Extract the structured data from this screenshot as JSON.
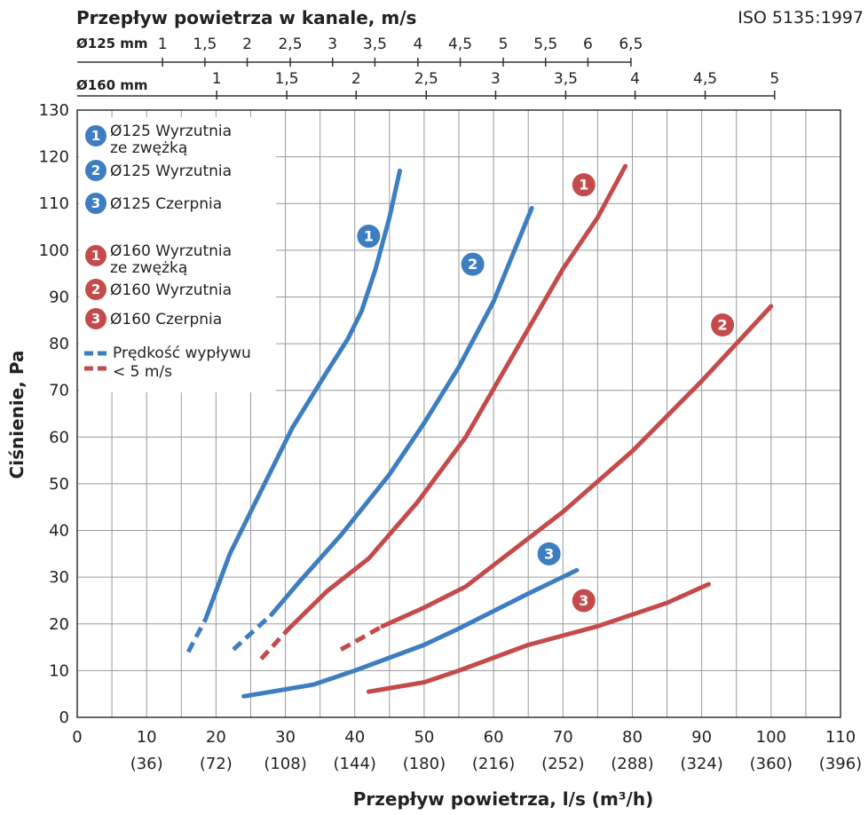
{
  "chart_data": {
    "type": "line",
    "title": "Przepływ powietrza w kanale, m/s",
    "standard": "ISO 5135:1997",
    "xlabel": "Przepływ powietrza, l/s (m³/h)",
    "ylabel": "Ciśnienie, Pa",
    "xlim": [
      0,
      110
    ],
    "ylim": [
      0,
      130
    ],
    "x_ticks": [
      {
        "v": 0,
        "label": "0",
        "sub": ""
      },
      {
        "v": 10,
        "label": "10",
        "sub": "(36)"
      },
      {
        "v": 20,
        "label": "20",
        "sub": "(72)"
      },
      {
        "v": 30,
        "label": "30",
        "sub": "(108)"
      },
      {
        "v": 40,
        "label": "40",
        "sub": "(144)"
      },
      {
        "v": 50,
        "label": "50",
        "sub": "(180)"
      },
      {
        "v": 60,
        "label": "60",
        "sub": "(216)"
      },
      {
        "v": 70,
        "label": "70",
        "sub": "(252)"
      },
      {
        "v": 80,
        "label": "80",
        "sub": "(288)"
      },
      {
        "v": 90,
        "label": "90",
        "sub": "(324)"
      },
      {
        "v": 100,
        "label": "100",
        "sub": "(360)"
      },
      {
        "v": 110,
        "label": "110",
        "sub": "(396)"
      }
    ],
    "y_ticks": [
      0,
      10,
      20,
      30,
      40,
      50,
      60,
      70,
      80,
      90,
      100,
      110,
      120,
      130
    ],
    "top_axis_125": {
      "label": "Ø125 mm",
      "ticks": [
        {
          "flow": 12.3,
          "label": "1"
        },
        {
          "flow": 18.4,
          "label": "1,5"
        },
        {
          "flow": 24.5,
          "label": "2"
        },
        {
          "flow": 30.7,
          "label": "2,5"
        },
        {
          "flow": 36.8,
          "label": "3"
        },
        {
          "flow": 42.9,
          "label": "3,5"
        },
        {
          "flow": 49.1,
          "label": "4"
        },
        {
          "flow": 55.2,
          "label": "4,5"
        },
        {
          "flow": 61.4,
          "label": "5"
        },
        {
          "flow": 67.5,
          "label": "5,5"
        },
        {
          "flow": 73.6,
          "label": "6"
        },
        {
          "flow": 79.8,
          "label": "6,5"
        }
      ]
    },
    "top_axis_160": {
      "label": "Ø160 mm",
      "ticks": [
        {
          "flow": 20.1,
          "label": "1"
        },
        {
          "flow": 30.2,
          "label": "1,5"
        },
        {
          "flow": 40.2,
          "label": "2"
        },
        {
          "flow": 50.3,
          "label": "2,5"
        },
        {
          "flow": 60.3,
          "label": "3"
        },
        {
          "flow": 70.4,
          "label": "3,5"
        },
        {
          "flow": 80.4,
          "label": "4"
        },
        {
          "flow": 90.5,
          "label": "4,5"
        },
        {
          "flow": 100.5,
          "label": "5"
        }
      ]
    },
    "series": [
      {
        "name": "Ø125 Wyrzutnia ze zwężką",
        "marker": "1",
        "color": "#3d7ec1",
        "dashed": [
          [
            16,
            14
          ],
          [
            18.5,
            21
          ]
        ],
        "solid": [
          [
            18.5,
            21
          ],
          [
            22,
            35
          ],
          [
            26,
            47
          ],
          [
            31,
            62
          ],
          [
            36,
            74
          ],
          [
            39,
            81
          ],
          [
            41,
            87
          ],
          [
            43,
            96
          ],
          [
            45,
            107
          ],
          [
            46.5,
            117
          ]
        ],
        "label_at": [
          42,
          103
        ]
      },
      {
        "name": "Ø125 Wyrzutnia",
        "marker": "2",
        "color": "#3d7ec1",
        "dashed": [
          [
            22.5,
            14.5
          ],
          [
            28,
            22
          ]
        ],
        "solid": [
          [
            28,
            22
          ],
          [
            32,
            29
          ],
          [
            38,
            39
          ],
          [
            45,
            52
          ],
          [
            50,
            63
          ],
          [
            55,
            75
          ],
          [
            60,
            89
          ],
          [
            65.5,
            109
          ]
        ],
        "label_at": [
          57,
          97
        ]
      },
      {
        "name": "Ø125 Czerpnia",
        "marker": "3",
        "color": "#3d7ec1",
        "dashed": [],
        "solid": [
          [
            24,
            4.5
          ],
          [
            28,
            5.5
          ],
          [
            34,
            7
          ],
          [
            40,
            10
          ],
          [
            50,
            15.5
          ],
          [
            55,
            19
          ],
          [
            65,
            26.5
          ],
          [
            72,
            31.5
          ]
        ],
        "label_at": [
          68,
          35
        ]
      },
      {
        "name": "Ø160 Wyrzutnia ze zwężką",
        "marker": "1",
        "color": "#c44b4b",
        "dashed": [
          [
            26.5,
            12.5
          ],
          [
            30.5,
            19
          ]
        ],
        "solid": [
          [
            30.5,
            19
          ],
          [
            36,
            27
          ],
          [
            42,
            34
          ],
          [
            49,
            46
          ],
          [
            56,
            60
          ],
          [
            63,
            78
          ],
          [
            70,
            96
          ],
          [
            75,
            107
          ],
          [
            79,
            118
          ]
        ],
        "label_at": [
          73,
          114
        ]
      },
      {
        "name": "Ø160 Wyrzutnia",
        "marker": "2",
        "color": "#c44b4b",
        "dashed": [
          [
            38,
            14.5
          ],
          [
            44,
            19.5
          ]
        ],
        "solid": [
          [
            44,
            19.5
          ],
          [
            50,
            23.5
          ],
          [
            56,
            28
          ],
          [
            63,
            36
          ],
          [
            70,
            44
          ],
          [
            80,
            57
          ],
          [
            90,
            72
          ],
          [
            100,
            88
          ]
        ],
        "label_at": [
          93,
          84
        ]
      },
      {
        "name": "Ø160 Czerpnia",
        "marker": "3",
        "color": "#c44b4b",
        "dashed": [],
        "solid": [
          [
            42,
            5.5
          ],
          [
            50,
            7.5
          ],
          [
            55,
            10
          ],
          [
            65,
            15.5
          ],
          [
            75,
            19.5
          ],
          [
            85,
            24.5
          ],
          [
            91,
            28.5
          ]
        ],
        "label_at": [
          73,
          25
        ]
      }
    ],
    "legend": {
      "placement": "top-left",
      "items": [
        {
          "marker": "1",
          "color": "#3d7ec1",
          "lines": [
            "Ø125 Wyrzutnia",
            "ze zwężką"
          ]
        },
        {
          "marker": "2",
          "color": "#3d7ec1",
          "lines": [
            "Ø125 Wyrzutnia"
          ]
        },
        {
          "marker": "3",
          "color": "#3d7ec1",
          "lines": [
            "Ø125 Czerpnia"
          ]
        },
        {
          "marker": "1",
          "color": "#c44b4b",
          "lines": [
            "Ø160 Wyrzutnia",
            "ze zwężką"
          ]
        },
        {
          "marker": "2",
          "color": "#c44b4b",
          "lines": [
            "Ø160 Wyrzutnia"
          ]
        },
        {
          "marker": "3",
          "color": "#c44b4b",
          "lines": [
            "Ø160 Czerpnia"
          ]
        }
      ],
      "dash_note": [
        "Prędkość wypływu",
        "< 5 m/s"
      ]
    },
    "grid": true
  }
}
